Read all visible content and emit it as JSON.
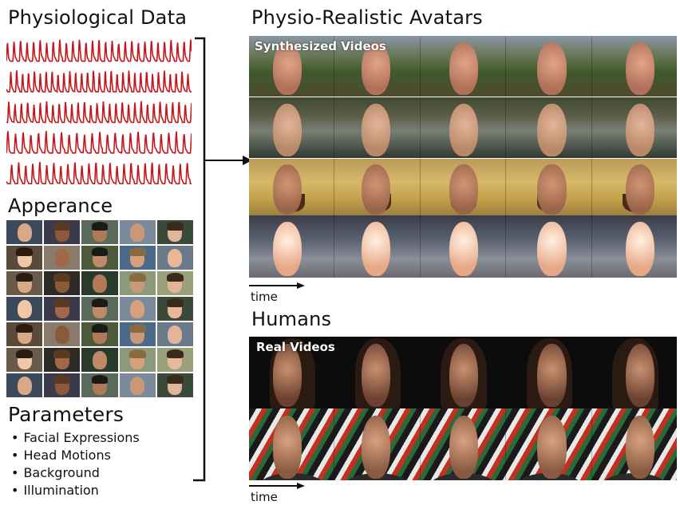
{
  "physiological": {
    "title": "Physiological Data",
    "signal_color": "#c4161c",
    "signal_count": 5
  },
  "appearance": {
    "title": "Apperance",
    "grid_rows": 7,
    "grid_cols": 5
  },
  "parameters": {
    "title": "Parameters",
    "items": [
      "Facial Expressions",
      "Head Motions",
      "Background",
      "Illumination"
    ]
  },
  "avatars": {
    "title": "Physio-Realistic Avatars",
    "overlay_label": "Synthesized Videos",
    "rows": 4,
    "frames_per_row": 5,
    "time_label": "time"
  },
  "humans": {
    "title": "Humans",
    "overlay_label": "Real Videos",
    "rows": 2,
    "frames_per_row": 5,
    "time_label": "time"
  }
}
